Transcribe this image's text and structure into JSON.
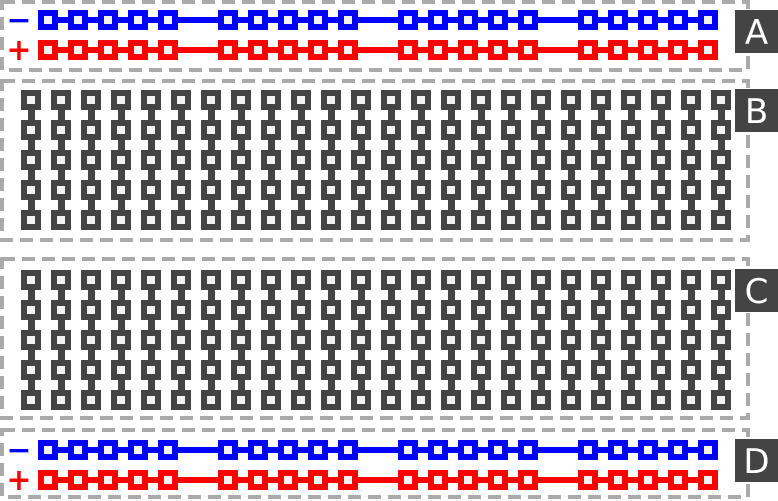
{
  "colors": {
    "negative_rail": "#0000ff",
    "positive_rail": "#ff0000",
    "terminal_strip": "#444444",
    "hole": "#f2f2f2",
    "section_border": "#aaaaaa",
    "label_background": "#444444",
    "label_text": "#ffffff"
  },
  "rails": {
    "groups": 4,
    "holes_per_group": 5,
    "negative_sign": "−",
    "positive_sign": "+"
  },
  "terminals": {
    "columns": 24,
    "rows_per_half": 5
  },
  "sections": [
    {
      "label": "A",
      "type": "power-rails"
    },
    {
      "label": "B",
      "type": "terminal-strips"
    },
    {
      "label": "C",
      "type": "terminal-strips"
    },
    {
      "label": "D",
      "type": "power-rails"
    }
  ]
}
